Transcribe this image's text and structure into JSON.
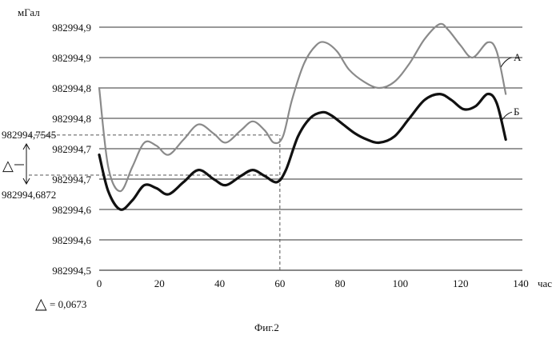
{
  "chart_data": {
    "type": "line",
    "title": "",
    "xlabel": "час",
    "ylabel": "мГал",
    "xlim": [
      0,
      140
    ],
    "ylim": [
      982994.5,
      982994.9
    ],
    "x_ticks": [
      0,
      20,
      40,
      60,
      80,
      100,
      120,
      140
    ],
    "y_ticks": [
      982994.5,
      982994.55,
      982994.6,
      982994.65,
      982994.7,
      982994.75,
      982994.8,
      982994.85,
      982994.9
    ],
    "y_tick_labels": [
      "982994,5",
      "982994,6",
      "982994,6",
      "982994,7",
      "982994,7",
      "982994,8",
      "982994,8",
      "982994,9",
      "982994,9"
    ],
    "x_tick_labels": [
      "0",
      "20",
      "40",
      "60",
      "80",
      "100",
      "120",
      "140"
    ],
    "grid": "horizontal",
    "series": [
      {
        "name": "А",
        "color": "#8a8a8a",
        "x": [
          0,
          3,
          7,
          11,
          15,
          19,
          23,
          28,
          33,
          38,
          42,
          47,
          51,
          55,
          58,
          61,
          64,
          68,
          72,
          75,
          79,
          83,
          88,
          93,
          98,
          103,
          108,
          113,
          116,
          120,
          124,
          129,
          132,
          135
        ],
        "y": [
          982994.8,
          982994.67,
          982994.63,
          982994.67,
          982994.71,
          982994.705,
          982994.69,
          982994.715,
          982994.74,
          982994.725,
          982994.71,
          982994.73,
          982994.745,
          982994.73,
          982994.71,
          982994.72,
          982994.78,
          982994.84,
          982994.87,
          982994.875,
          982994.86,
          982994.83,
          982994.81,
          982994.8,
          982994.81,
          982994.84,
          982994.88,
          982994.905,
          982994.895,
          982994.87,
          982994.85,
          982994.875,
          982994.86,
          982994.79
        ]
      },
      {
        "name": "Б",
        "color": "#111111",
        "x": [
          0,
          3,
          7,
          11,
          15,
          19,
          23,
          28,
          33,
          38,
          42,
          47,
          51,
          55,
          59,
          62,
          66,
          70,
          74,
          77,
          81,
          85,
          89,
          93,
          98,
          103,
          108,
          113,
          117,
          121,
          125,
          129,
          132,
          135
        ],
        "y": [
          982994.69,
          982994.63,
          982994.6,
          982994.615,
          982994.64,
          982994.635,
          982994.625,
          982994.645,
          982994.665,
          982994.65,
          982994.64,
          982994.655,
          982994.665,
          982994.655,
          982994.645,
          982994.665,
          982994.72,
          982994.75,
          982994.76,
          982994.755,
          982994.74,
          982994.725,
          982994.715,
          982994.71,
          982994.72,
          982994.75,
          982994.78,
          982994.79,
          982994.78,
          982994.765,
          982994.77,
          982994.79,
          982994.775,
          982994.715
        ]
      }
    ],
    "annotations": {
      "value_upper": "982994,7545",
      "value_lower": "982994,6872",
      "delta_symbol": "△",
      "delta_text": "= 0,0673",
      "delta_marker": "60",
      "upper_value_y": 982994.7225,
      "lower_value_y": 982994.6565
    }
  },
  "figure_caption": "Фиг.2"
}
